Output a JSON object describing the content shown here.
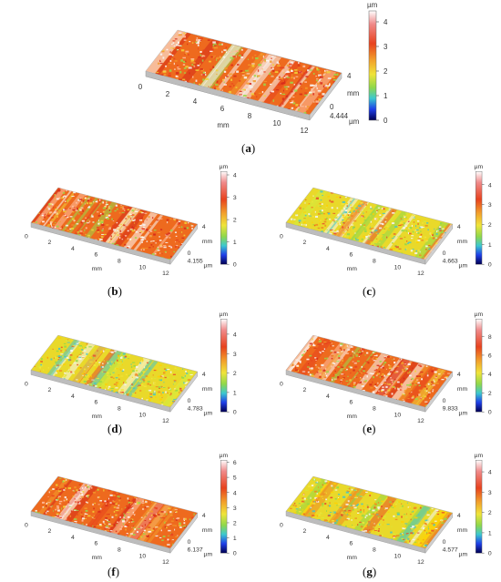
{
  "figure": {
    "panels": [
      {
        "label": "a",
        "height_max": "4.444",
        "x_ticks": [
          "0",
          "2",
          "4",
          "6",
          "8",
          "10",
          "12"
        ],
        "y_ticks": [
          "4",
          "0"
        ],
        "x_unit": "mm",
        "y_unit": "mm",
        "colorbar_ticks": [
          "4",
          "3",
          "2",
          "1",
          "0"
        ],
        "colorbar_unit_top": "µm",
        "colorbar_unit_bottom": "µm",
        "colorbar_max": 4.444,
        "surface_scheme": "red-orange-white"
      },
      {
        "label": "b",
        "height_max": "4.155",
        "x_ticks": [
          "0",
          "2",
          "4",
          "6",
          "8",
          "10",
          "12"
        ],
        "y_ticks": [
          "4",
          "0"
        ],
        "x_unit": "mm",
        "y_unit": "mm",
        "colorbar_ticks": [
          "4",
          "3",
          "2",
          "1",
          "0"
        ],
        "colorbar_unit_top": "µm",
        "colorbar_unit_bottom": "µm",
        "colorbar_max": 4.155,
        "surface_scheme": "red-orange-white"
      },
      {
        "label": "c",
        "height_max": "4.663",
        "x_ticks": [
          "0",
          "2",
          "4",
          "6",
          "8",
          "10",
          "12"
        ],
        "y_ticks": [
          "4",
          "0"
        ],
        "x_unit": "mm",
        "y_unit": "mm",
        "colorbar_ticks": [
          "4",
          "3",
          "2",
          "1",
          "0"
        ],
        "colorbar_unit_top": "µm",
        "colorbar_unit_bottom": "µm",
        "colorbar_max": 4.663,
        "surface_scheme": "yellow-green"
      },
      {
        "label": "d",
        "height_max": "4.783",
        "x_ticks": [
          "0",
          "2",
          "4",
          "6",
          "8",
          "10",
          "12"
        ],
        "y_ticks": [
          "4",
          "0"
        ],
        "x_unit": "mm",
        "y_unit": "mm",
        "colorbar_ticks": [
          "4",
          "3",
          "2",
          "1",
          "0"
        ],
        "colorbar_unit_top": "µm",
        "colorbar_unit_bottom": "µm",
        "colorbar_max": 4.783,
        "surface_scheme": "yellow-green"
      },
      {
        "label": "e",
        "height_max": "9.833",
        "x_ticks": [
          "0",
          "2",
          "4",
          "6",
          "8",
          "10",
          "12"
        ],
        "y_ticks": [
          "4",
          "0"
        ],
        "x_unit": "mm",
        "y_unit": "mm",
        "colorbar_ticks": [
          "8",
          "6",
          "4",
          "2",
          "0"
        ],
        "colorbar_unit_top": "µm",
        "colorbar_unit_bottom": "µm",
        "colorbar_max": 9.833,
        "surface_scheme": "red-orange-white"
      },
      {
        "label": "f",
        "height_max": "6.137",
        "x_ticks": [
          "0",
          "2",
          "4",
          "6",
          "8",
          "10",
          "12"
        ],
        "y_ticks": [
          "4",
          "0"
        ],
        "x_unit": "mm",
        "y_unit": "mm",
        "colorbar_ticks": [
          "6",
          "5",
          "4",
          "3",
          "2",
          "1",
          "0"
        ],
        "colorbar_unit_top": "µm",
        "colorbar_unit_bottom": "µm",
        "colorbar_max": 6.137,
        "surface_scheme": "red-orange-white"
      },
      {
        "label": "g",
        "height_max": "4.577",
        "x_ticks": [
          "0",
          "2",
          "4",
          "6",
          "8",
          "10",
          "12"
        ],
        "y_ticks": [
          "4",
          "0"
        ],
        "x_unit": "mm",
        "y_unit": "mm",
        "colorbar_ticks": [
          "4",
          "3",
          "2",
          "1",
          "0"
        ],
        "colorbar_unit_top": "µm",
        "colorbar_unit_bottom": "µm",
        "colorbar_max": 4.577,
        "surface_scheme": "yellow-green"
      }
    ]
  }
}
